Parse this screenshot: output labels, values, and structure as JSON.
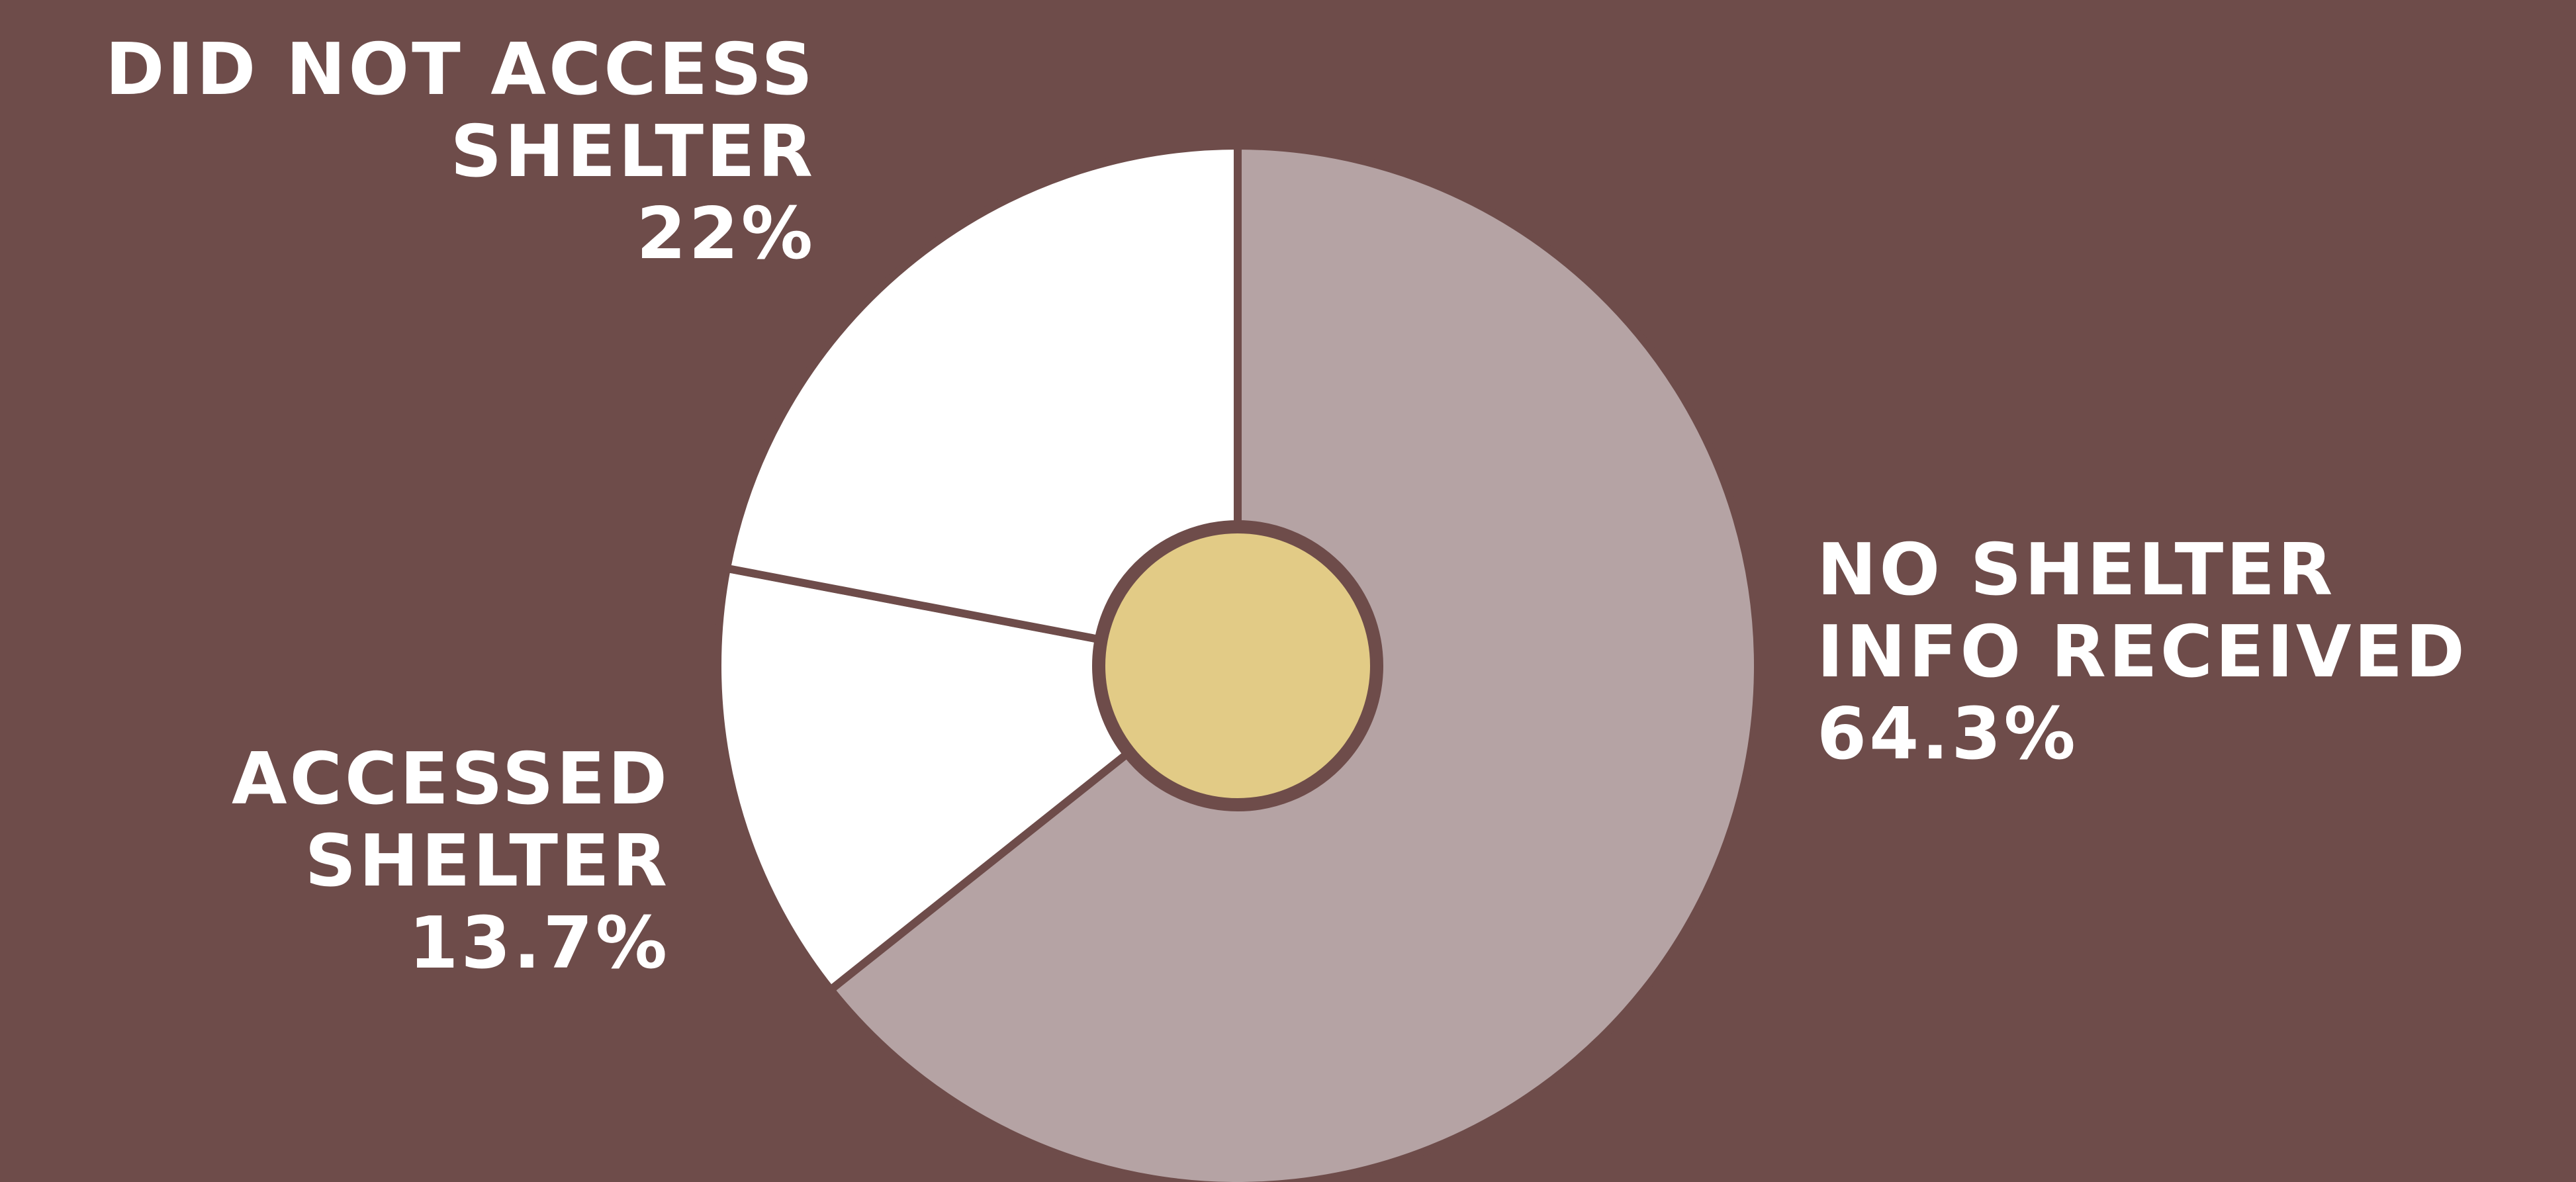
{
  "chart_data": {
    "type": "pie",
    "categories": [
      "No Shelter Info Received",
      "Accessed Shelter",
      "Did Not Access Shelter"
    ],
    "values": [
      64.3,
      13.7,
      22
    ],
    "colors": [
      "#b5a3a4",
      "#ffffff",
      "#ffffff"
    ],
    "background": "#6e4c4a",
    "center_color": "#e2cb86",
    "start_angle": "12 o'clock, clockwise",
    "labels": {
      "did_not_access": {
        "line1": "DID NOT ACCESS",
        "line2": "SHELTER",
        "value": "22%"
      },
      "accessed": {
        "line1": "ACCESSED",
        "line2": "SHELTER",
        "value": "13.7%"
      },
      "no_info": {
        "line1": "NO SHELTER",
        "line2": "INFO RECEIVED",
        "value": "64.3%"
      }
    }
  }
}
